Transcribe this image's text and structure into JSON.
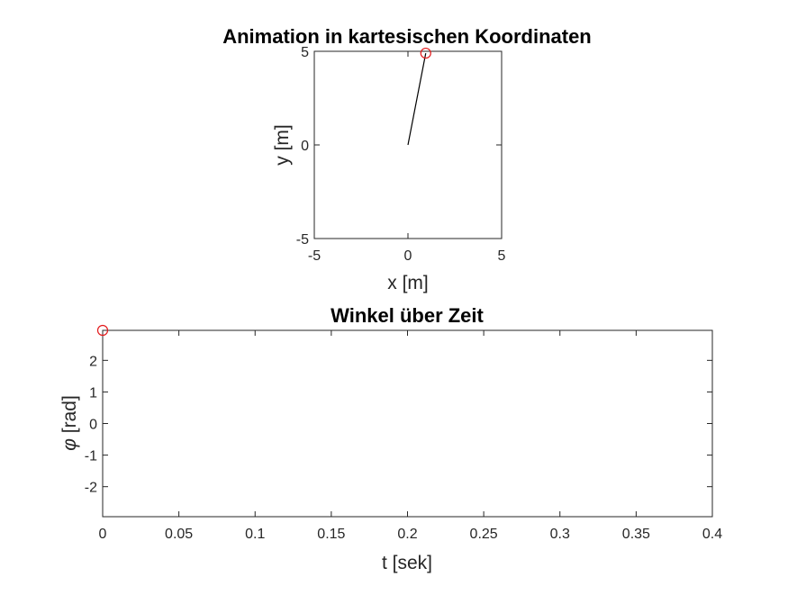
{
  "colors": {
    "pendulum_rod": "#000000",
    "marker": "#e31a1c",
    "axes": "#262626"
  },
  "chart_data": [
    {
      "type": "line",
      "title": "Animation in kartesischen Koordinaten",
      "xlabel": "x [m]",
      "ylabel": "y [m]",
      "xlim": [
        -5,
        5
      ],
      "ylim": [
        -5,
        5
      ],
      "xticks": [
        "-5",
        "0",
        "5"
      ],
      "yticks": [
        "-5",
        "0",
        "5"
      ],
      "grid": false,
      "series": [
        {
          "type": "line",
          "x": [
            0,
            0.95
          ],
          "y": [
            0,
            4.9
          ]
        },
        {
          "type": "scatter",
          "marker": "circle",
          "x": [
            0.95
          ],
          "y": [
            4.9
          ]
        }
      ]
    },
    {
      "type": "line",
      "title": "Winkel über Zeit",
      "xlabel": "t [sek]",
      "ylabel_symbol": "φ",
      "ylabel": " [rad]",
      "xlim": [
        0,
        0.4
      ],
      "ylim": [
        -2.95,
        2.95
      ],
      "xticks": [
        "0",
        "0.05",
        "0.1",
        "0.15",
        "0.2",
        "0.25",
        "0.3",
        "0.35",
        "0.4"
      ],
      "yticks": [
        "-2",
        "-1",
        "0",
        "1",
        "2"
      ],
      "grid": false,
      "series": [
        {
          "type": "scatter",
          "marker": "circle",
          "x": [
            0
          ],
          "y": [
            2.95
          ]
        }
      ]
    }
  ]
}
